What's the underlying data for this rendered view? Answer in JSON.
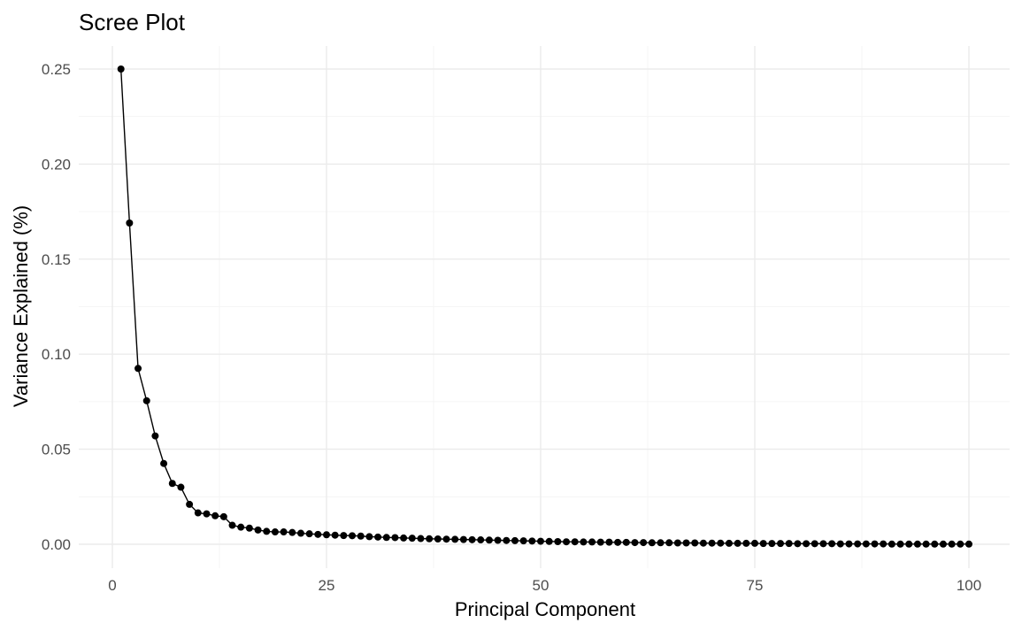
{
  "chart_data": {
    "type": "line",
    "title": "Scree Plot",
    "xlabel": "Principal Component",
    "ylabel": "Variance Explained (%)",
    "xlim": [
      0,
      100
    ],
    "ylim": [
      0,
      0.25
    ],
    "x_ticks": [
      0,
      25,
      50,
      75,
      100
    ],
    "x_tick_labels": [
      "0",
      "25",
      "50",
      "75",
      "100"
    ],
    "y_ticks": [
      0,
      0.05,
      0.1,
      0.15,
      0.2,
      0.25
    ],
    "y_tick_labels": [
      "0.00",
      "0.05",
      "0.10",
      "0.15",
      "0.20",
      "0.25"
    ],
    "grid": true,
    "legend": "none",
    "colors": {
      "series": "#000000",
      "grid": "#ebebeb",
      "tick_text": "#4d4d4d"
    },
    "series": [
      {
        "x": [
          1,
          2,
          3,
          4,
          5,
          6,
          7,
          8,
          9,
          10,
          11,
          12,
          13,
          14,
          15,
          16,
          17,
          18,
          19,
          20,
          21,
          22,
          23,
          24,
          25,
          26,
          27,
          28,
          29,
          30,
          31,
          32,
          33,
          34,
          35,
          36,
          37,
          38,
          39,
          40,
          41,
          42,
          43,
          44,
          45,
          46,
          47,
          48,
          49,
          50,
          51,
          52,
          53,
          54,
          55,
          56,
          57,
          58,
          59,
          60,
          61,
          62,
          63,
          64,
          65,
          66,
          67,
          68,
          69,
          70,
          71,
          72,
          73,
          74,
          75,
          76,
          77,
          78,
          79,
          80,
          81,
          82,
          83,
          84,
          85,
          86,
          87,
          88,
          89,
          90,
          91,
          92,
          93,
          94,
          95,
          96,
          97,
          98,
          99,
          100
        ],
        "values": [
          0.25,
          0.169,
          0.0925,
          0.0755,
          0.057,
          0.0425,
          0.032,
          0.03,
          0.021,
          0.0165,
          0.016,
          0.015,
          0.0145,
          0.01,
          0.009,
          0.0085,
          0.0075,
          0.0068,
          0.0065,
          0.0065,
          0.0062,
          0.0058,
          0.0055,
          0.0052,
          0.005,
          0.0048,
          0.0046,
          0.0045,
          0.0043,
          0.004,
          0.0038,
          0.0036,
          0.0035,
          0.0033,
          0.0032,
          0.003,
          0.0029,
          0.0028,
          0.0027,
          0.0026,
          0.0025,
          0.0024,
          0.0023,
          0.0022,
          0.0021,
          0.002,
          0.0019,
          0.0018,
          0.0017,
          0.0016,
          0.0015,
          0.0014,
          0.0013,
          0.0013,
          0.0012,
          0.0012,
          0.0011,
          0.0011,
          0.001,
          0.001,
          0.0009,
          0.0009,
          0.0008,
          0.0008,
          0.0008,
          0.0007,
          0.0007,
          0.0007,
          0.0006,
          0.0006,
          0.0006,
          0.0005,
          0.0005,
          0.0005,
          0.0005,
          0.0004,
          0.0004,
          0.0004,
          0.0004,
          0.0003,
          0.0003,
          0.0003,
          0.0003,
          0.0003,
          0.0002,
          0.0002,
          0.0002,
          0.0002,
          0.0002,
          0.0002,
          0.0001,
          0.0001,
          0.0001,
          0.0001,
          0.0001,
          0.0001,
          0.0001,
          0.0001,
          0.0001,
          0.0001
        ]
      }
    ]
  }
}
